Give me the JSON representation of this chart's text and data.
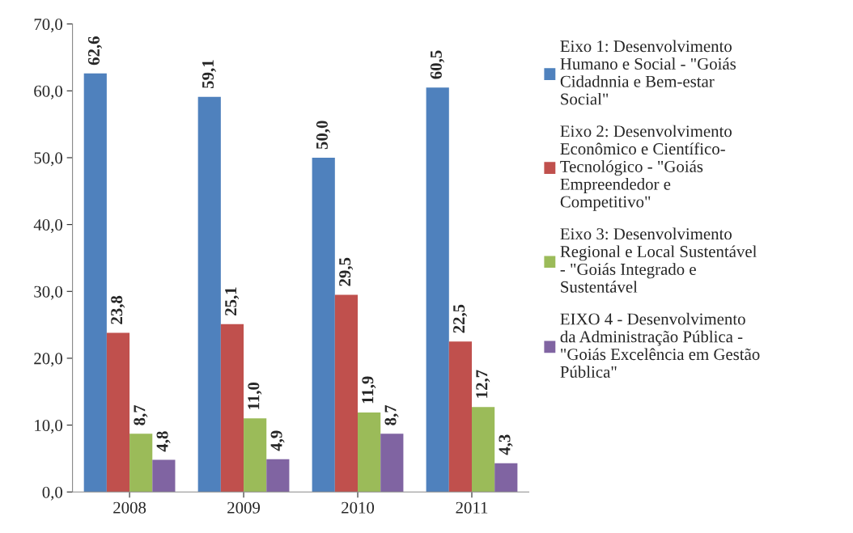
{
  "chart_data": {
    "type": "bar",
    "categories": [
      "2008",
      "2009",
      "2010",
      "2011"
    ],
    "series": [
      {
        "name": "Eixo 1: Desenvolvimento\nHumano e Social - \"Goiás\nCidadnnia e Bem-estar\nSocial\"",
        "color": "#4f81bd",
        "values": [
          62.6,
          59.1,
          50.0,
          60.5
        ],
        "value_labels": [
          "62,6",
          "59,1",
          "50,0",
          "60,5"
        ]
      },
      {
        "name": "Eixo 2: Desenvolvimento\nEconômico e Científico-\nTecnológico - \"Goiás\nEmpreendedor e\nCompetitivo\"",
        "color": "#c0504d",
        "values": [
          23.8,
          25.1,
          29.5,
          22.5
        ],
        "value_labels": [
          "23,8",
          "25,1",
          "29,5",
          "22,5"
        ]
      },
      {
        "name": "Eixo 3: Desenvolvimento\nRegional e Local Sustentável\n- \"Goiás Integrado e\nSustentável",
        "color": "#9bbb59",
        "values": [
          8.7,
          11.0,
          11.9,
          12.7
        ],
        "value_labels": [
          "8,7",
          "11,0",
          "11,9",
          "12,7"
        ]
      },
      {
        "name": "EIXO 4 - Desenvolvimento\nda Administração Pública -\n\"Goiás Excelência em Gestão\nPública\"",
        "color": "#8064a2",
        "values": [
          4.8,
          4.9,
          8.7,
          4.3
        ],
        "value_labels": [
          "4,8",
          "4,9",
          "8,7",
          "4,3"
        ]
      }
    ],
    "ylim": [
      0,
      70
    ],
    "yticks": [
      {
        "value": 0,
        "label": "0,0"
      },
      {
        "value": 10,
        "label": "10,0"
      },
      {
        "value": 20,
        "label": "20,0"
      },
      {
        "value": 30,
        "label": "30,0"
      },
      {
        "value": 40,
        "label": "40,0"
      },
      {
        "value": 50,
        "label": "50,0"
      },
      {
        "value": 60,
        "label": "60,0"
      },
      {
        "value": 70,
        "label": "70,0"
      }
    ],
    "grid": false,
    "legend": "right"
  }
}
